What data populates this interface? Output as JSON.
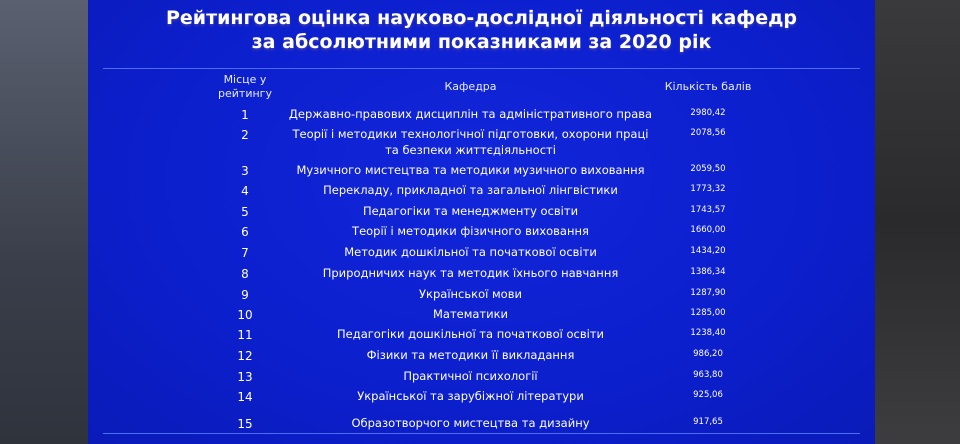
{
  "slide": {
    "title_line1": "Рейтингова оцінка науково-дослідної діяльності кафедр",
    "title_line2": "за абсолютними показниками за 2020 рік",
    "headers": {
      "rank": "Місце у рейтингу",
      "department": "Кафедра",
      "score": "Кількість балів"
    },
    "rows": [
      {
        "rank": "1",
        "department": "Державно-правових дисциплін та адміністративного права",
        "score": "2980,42"
      },
      {
        "rank": "2",
        "department": "Теорії і методики технологічної підготовки, охорони праці та безпеки життєдіяльності",
        "score": "2078,56"
      },
      {
        "rank": "3",
        "department": "Музичного мистецтва та методики музичного виховання",
        "score": "2059,50"
      },
      {
        "rank": "4",
        "department": "Перекладу, прикладної та загальної лінгвістики",
        "score": "1773,32"
      },
      {
        "rank": "5",
        "department": "Педагогіки та менеджменту освіти",
        "score": "1743,57"
      },
      {
        "rank": "6",
        "department": "Теорії і методики фізичного виховання",
        "score": "1660,00"
      },
      {
        "rank": "7",
        "department": "Методик дошкільної та початкової освіти",
        "score": "1434,20"
      },
      {
        "rank": "8",
        "department": "Природничих наук та методик їхнього навчання",
        "score": "1386,34"
      },
      {
        "rank": "9",
        "department": "Української мови",
        "score": "1287,90"
      },
      {
        "rank": "10",
        "department": "Математики",
        "score": "1285,00"
      },
      {
        "rank": "11",
        "department": "Педагогіки дошкільної та початкової освіти",
        "score": "1238,40"
      },
      {
        "rank": "12",
        "department": "Фізики та методики її викладання",
        "score": "986,20"
      },
      {
        "rank": "13",
        "department": "Практичної психології",
        "score": "963,80"
      },
      {
        "rank": "14",
        "department": "Української та зарубіжної літератури",
        "score": "925,06"
      },
      {
        "rank": "15",
        "department": "Образотворчого мистецтва та дизайну",
        "score": "917,65"
      }
    ]
  }
}
